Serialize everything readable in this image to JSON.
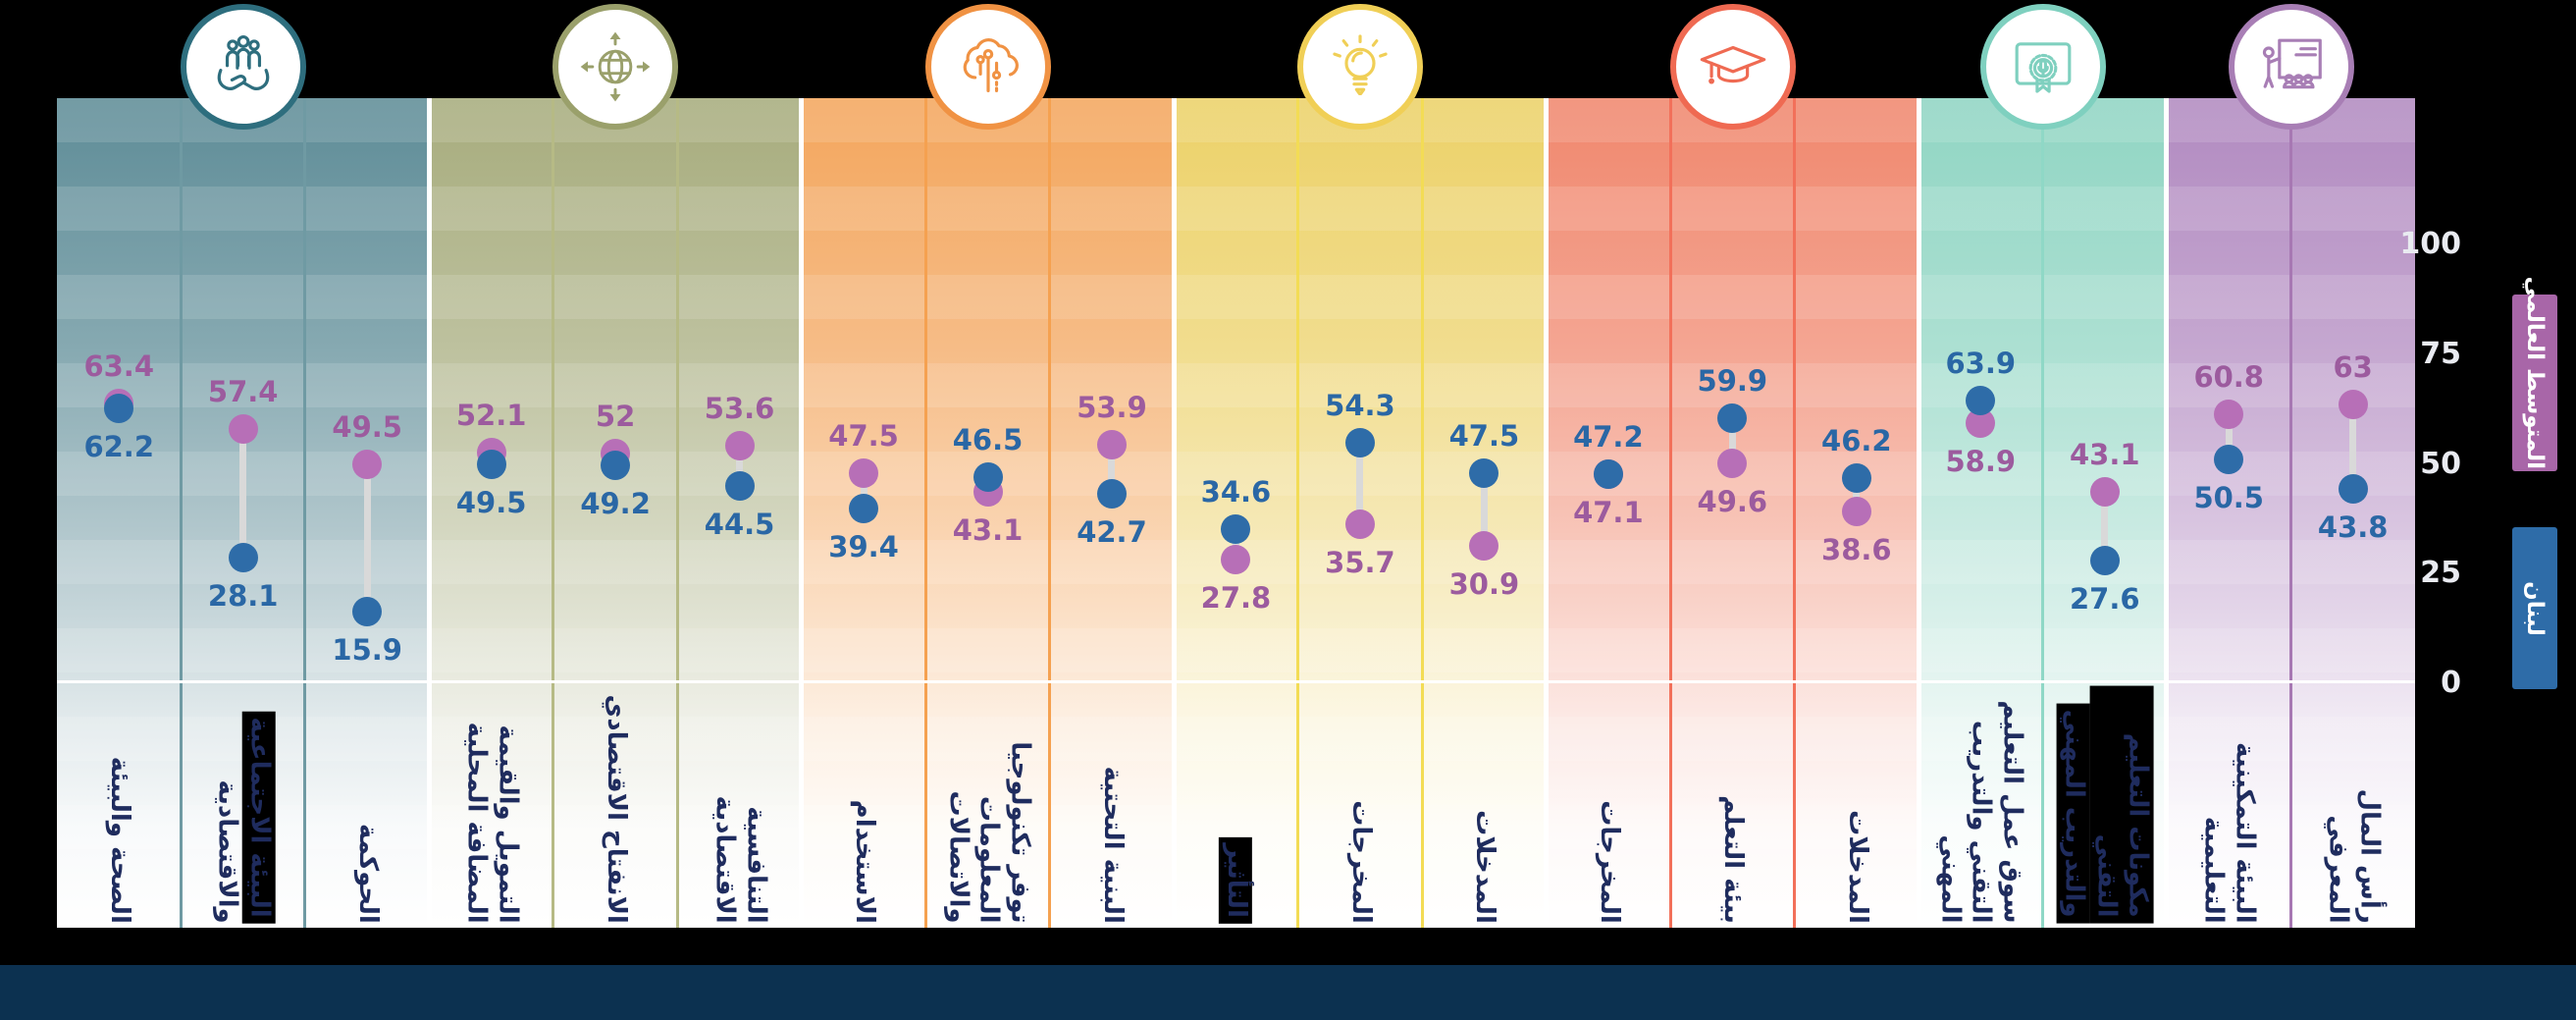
{
  "chart_data": {
    "type": "dumbbell",
    "ylim": [
      0,
      100
    ],
    "yticks": [
      "100",
      "75",
      "50",
      "25",
      "0"
    ],
    "legend": [
      {
        "label": "المتوسط العالمي",
        "color": "#a866a8"
      },
      {
        "label": "لبنان",
        "color": "#2e6ca8"
      }
    ],
    "series_names": {
      "global": "المتوسط العالمي",
      "lebanon": "لبنان"
    },
    "colors": {
      "global_dot": "#b76fb7",
      "lebanon_dot": "#2e6ca8",
      "global_value_text": "#9c5b9e",
      "lebanon_value_text": "#2a67a5",
      "category_text": "#1f2c5e",
      "highlight_box": "#000000",
      "axis_tick_text": "#e9ebf1",
      "footer_bar": "#0c3150"
    },
    "groups": [
      {
        "icon": "hands-holding-people-icon",
        "accent": "#2e6e7e",
        "top_color": "#5e8c97",
        "divider": "#6f9aa3",
        "columns": [
          {
            "label_lines": [
              "الصحة والبيئة"
            ],
            "highlight_lines": [],
            "global": 63.4,
            "lebanon": 62.2
          },
          {
            "label_lines": [
              "البيئة الاجتماعية",
              "والاقتصادية"
            ],
            "highlight_lines": [
              0
            ],
            "global": 57.4,
            "lebanon": 28.1
          },
          {
            "label_lines": [
              "الحوكمة"
            ],
            "highlight_lines": [],
            "global": 49.5,
            "lebanon": 15.9
          }
        ]
      },
      {
        "icon": "globe-arrows-icon",
        "accent": "#9aa06b",
        "top_color": "#a7ac7d",
        "divider": "#b6ba85",
        "columns": [
          {
            "label_lines": [
              "التمويل والقيمة",
              "المضافة المحلية"
            ],
            "highlight_lines": [],
            "global": 52.1,
            "lebanon": 49.5
          },
          {
            "label_lines": [
              "الانفتاح الاقتصادي"
            ],
            "highlight_lines": [],
            "global": 52,
            "lebanon": 49.2
          },
          {
            "label_lines": [
              "التنافسية الاقتصادية"
            ],
            "highlight_lines": [],
            "global": 53.6,
            "lebanon": 44.5
          }
        ]
      },
      {
        "icon": "brain-circuit-icon",
        "accent": "#f09243",
        "top_color": "#f3a65d",
        "divider": "#f5a150",
        "columns": [
          {
            "label_lines": [
              "الاستخدام"
            ],
            "highlight_lines": [],
            "global": 47.5,
            "lebanon": 39.4
          },
          {
            "label_lines": [
              "توفر تكنولوجيا",
              "المعلومات والاتصالات"
            ],
            "highlight_lines": [],
            "global": 43.1,
            "lebanon": 46.5
          },
          {
            "label_lines": [
              "البنية التحتية"
            ],
            "highlight_lines": [],
            "global": 53.9,
            "lebanon": 42.7
          }
        ]
      },
      {
        "icon": "lightbulb-icon",
        "accent": "#f0cf56",
        "top_color": "#ecd168",
        "divider": "#f3dc55",
        "columns": [
          {
            "label_lines": [
              "التأثير"
            ],
            "highlight_lines": [
              0
            ],
            "global": 27.8,
            "lebanon": 34.6
          },
          {
            "label_lines": [
              "المخرجات"
            ],
            "highlight_lines": [],
            "global": 35.7,
            "lebanon": 54.3
          },
          {
            "label_lines": [
              "المدخلات"
            ],
            "highlight_lines": [],
            "global": 30.9,
            "lebanon": 47.5
          }
        ]
      },
      {
        "icon": "graduation-cap-icon",
        "accent": "#ef6a52",
        "top_color": "#f0876d",
        "divider": "#f2705a",
        "columns": [
          {
            "label_lines": [
              "المخرجات"
            ],
            "highlight_lines": [],
            "global": 47.1,
            "lebanon": 47.2
          },
          {
            "label_lines": [
              "بيئة التعلم"
            ],
            "highlight_lines": [],
            "global": 49.6,
            "lebanon": 59.9
          },
          {
            "label_lines": [
              "المدخلات"
            ],
            "highlight_lines": [],
            "global": 38.6,
            "lebanon": 46.2
          }
        ]
      },
      {
        "icon": "certificate-ribbon-icon",
        "accent": "#7fd0bf",
        "top_color": "#90d5c3",
        "divider": "#8fd8c6",
        "columns": [
          {
            "label_lines": [
              "سوق عمل التعليم",
              "التقني والتدريب",
              "المهني"
            ],
            "highlight_lines": [],
            "global": 58.9,
            "lebanon": 63.9
          },
          {
            "label_lines": [
              "مكونات التعليم التقني",
              "والتدريب المهني"
            ],
            "highlight_lines": [
              0,
              1
            ],
            "global": 43.1,
            "lebanon": 27.6
          }
        ]
      },
      {
        "icon": "teacher-classroom-icon",
        "accent": "#a87eb5",
        "top_color": "#b18ac0",
        "divider": "#a778b3",
        "columns": [
          {
            "label_lines": [
              "البيئة التمكينية",
              "التعليمية"
            ],
            "highlight_lines": [],
            "global": 60.8,
            "lebanon": 50.5
          },
          {
            "label_lines": [
              "رأس المال",
              "المعرفي"
            ],
            "highlight_lines": [],
            "global": 63,
            "lebanon": 43.8
          }
        ]
      }
    ]
  }
}
